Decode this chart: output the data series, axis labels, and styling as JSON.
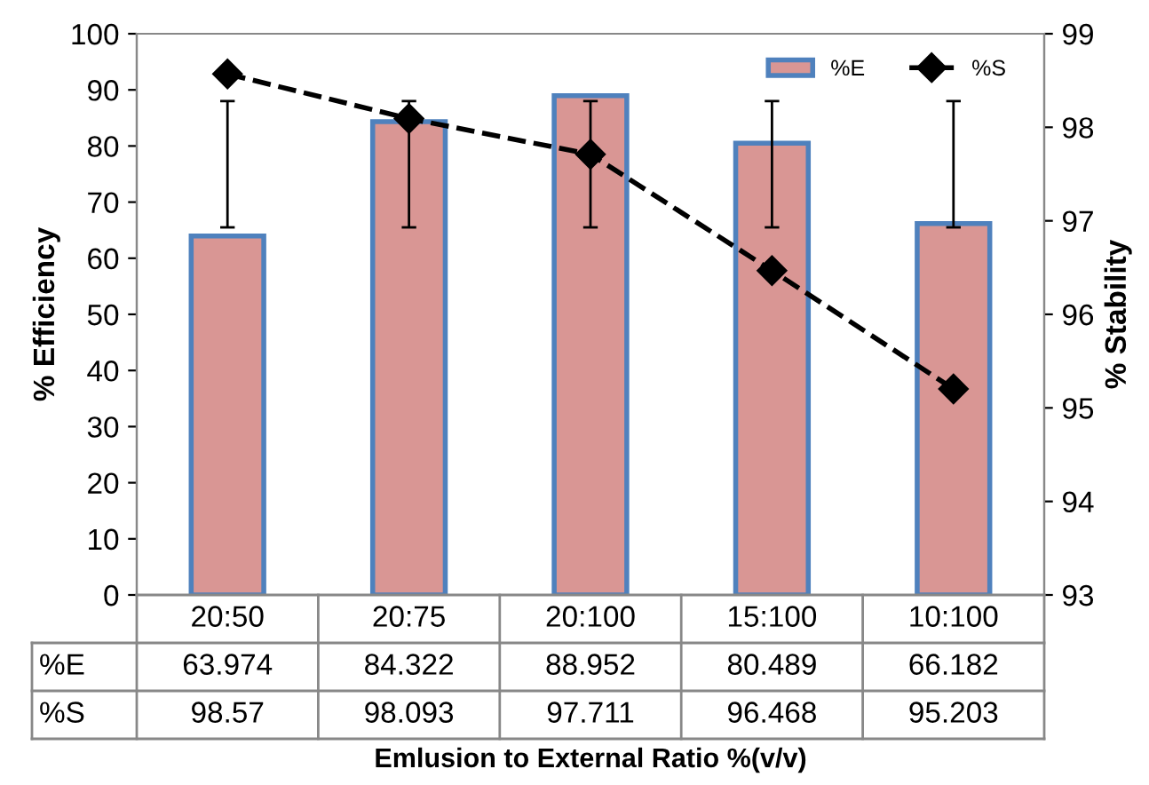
{
  "chart_data": {
    "type": "bar",
    "xlabel": "Emlusion to External Ratio %(v/v)",
    "ylabel": "% Efficiency",
    "y2label": "% Stability",
    "categories": [
      "20:50",
      "20:75",
      "20:100",
      "15:100",
      "10:100"
    ],
    "series": [
      {
        "name": "%E",
        "color": "#d99694",
        "values": [
          63.974,
          84.322,
          88.952,
          80.489,
          66.182
        ],
        "errors": [
          [
            65.5,
            88
          ],
          [
            65.5,
            88
          ],
          [
            65.5,
            88
          ],
          [
            65.5,
            88
          ],
          [
            65.5,
            88
          ]
        ]
      },
      {
        "name": "%S",
        "type": "line",
        "axis": "y2",
        "color": "#000000",
        "marker": "diamond",
        "line_style": "dashed",
        "values": [
          98.57,
          98.093,
          97.711,
          96.468,
          95.203
        ]
      }
    ],
    "ylim": [
      0,
      100
    ],
    "yticks": [
      0,
      10,
      20,
      30,
      40,
      50,
      60,
      70,
      80,
      90,
      100
    ],
    "y2lim": [
      93,
      99
    ],
    "y2ticks": [
      93,
      94,
      95,
      96,
      97,
      98,
      99
    ],
    "data_labels": true,
    "legend": "top right",
    "grid": false
  }
}
